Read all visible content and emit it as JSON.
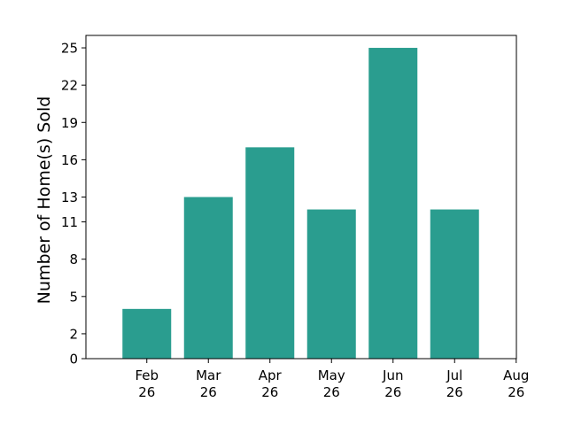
{
  "chart_data": {
    "type": "bar",
    "title": "",
    "xlabel": "",
    "ylabel": "Number of Home(s) Sold",
    "x_ticks": [
      {
        "label": [
          "Feb",
          "26"
        ]
      },
      {
        "label": [
          "Mar",
          "26"
        ]
      },
      {
        "label": [
          "Apr",
          "26"
        ]
      },
      {
        "label": [
          "May",
          "26"
        ]
      },
      {
        "label": [
          "Jun",
          "26"
        ]
      },
      {
        "label": [
          "Jul",
          "26"
        ]
      },
      {
        "label": [
          "Aug",
          "26"
        ]
      }
    ],
    "categories": [
      "Feb 26",
      "Mar 26",
      "Apr 26",
      "May 26",
      "Jun 26",
      "Jul 26"
    ],
    "values": [
      4,
      13,
      17,
      12,
      25,
      12
    ],
    "y_ticks": [
      0,
      2,
      5,
      8,
      11,
      13,
      16,
      19,
      22,
      25
    ],
    "ylim": [
      0,
      26
    ],
    "bar_color": "#2a9d8f",
    "grid": false,
    "legend": "none"
  }
}
